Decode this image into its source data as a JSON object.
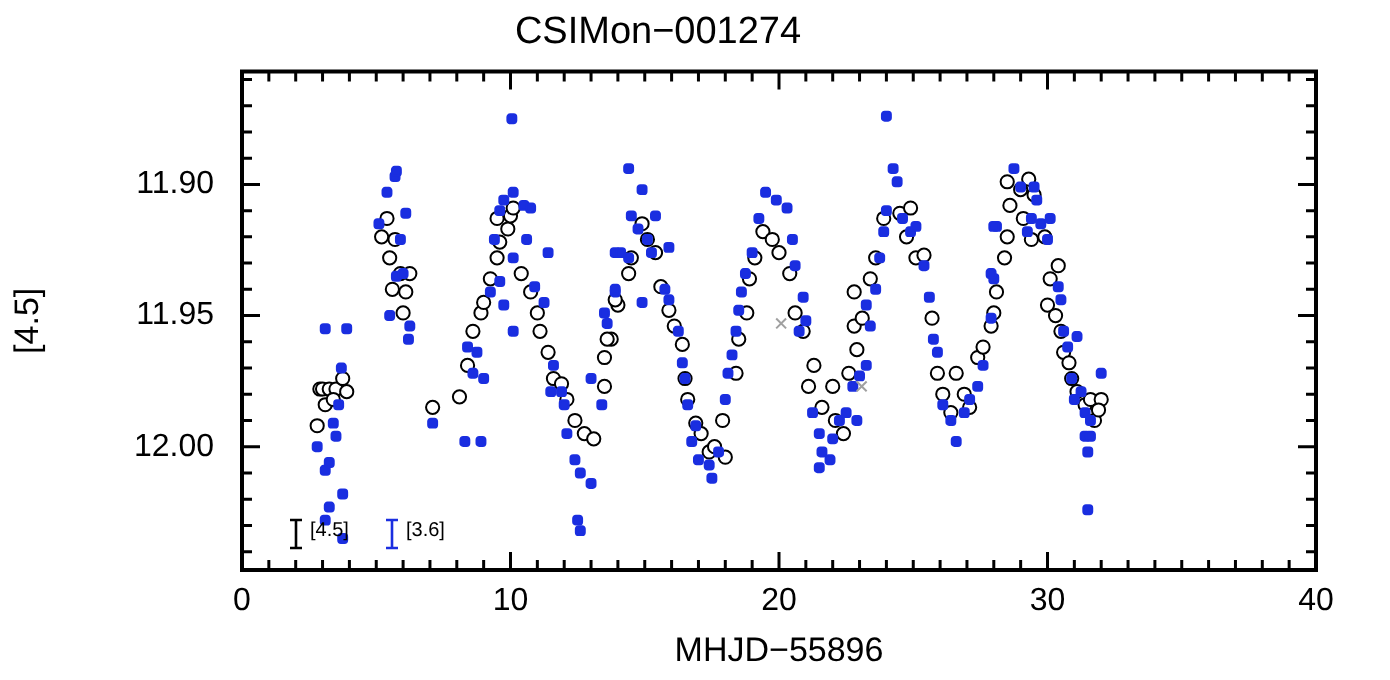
{
  "chart_data": {
    "type": "scatter",
    "title": "CSIMon−001274",
    "xlabel": "MHJD−55896",
    "ylabel": "[4.5]",
    "xlim": [
      0,
      40
    ],
    "ylim": [
      12.047,
      11.857
    ],
    "xticks": [
      0,
      {
        "value": 1,
        "label": null
      },
      {
        "value": 2,
        "label": null
      },
      {
        "value": 3,
        "label": null
      },
      {
        "value": 4,
        "label": null
      },
      {
        "value": 5,
        "label": null
      },
      {
        "value": 6,
        "label": null
      },
      {
        "value": 7,
        "label": null
      },
      {
        "value": 8,
        "label": null
      },
      {
        "value": 9,
        "label": null
      },
      10,
      {
        "value": 11,
        "label": null
      },
      {
        "value": 12,
        "label": null
      },
      {
        "value": 13,
        "label": null
      },
      {
        "value": 14,
        "label": null
      },
      {
        "value": 15,
        "label": null
      },
      {
        "value": 16,
        "label": null
      },
      {
        "value": 17,
        "label": null
      },
      {
        "value": 18,
        "label": null
      },
      {
        "value": 19,
        "label": null
      },
      20,
      {
        "value": 21,
        "label": null
      },
      {
        "value": 22,
        "label": null
      },
      {
        "value": 23,
        "label": null
      },
      {
        "value": 24,
        "label": null
      },
      {
        "value": 25,
        "label": null
      },
      {
        "value": 26,
        "label": null
      },
      {
        "value": 27,
        "label": null
      },
      {
        "value": 28,
        "label": null
      },
      {
        "value": 29,
        "label": null
      },
      30,
      {
        "value": 31,
        "label": null
      },
      {
        "value": 32,
        "label": null
      },
      {
        "value": 33,
        "label": null
      },
      {
        "value": 34,
        "label": null
      },
      {
        "value": 35,
        "label": null
      },
      {
        "value": 36,
        "label": null
      },
      {
        "value": 37,
        "label": null
      },
      {
        "value": 38,
        "label": null
      },
      {
        "value": 39,
        "label": null
      },
      40
    ],
    "yticks": [
      {
        "value": 11.86,
        "label": null
      },
      {
        "value": 11.87,
        "label": null
      },
      {
        "value": 11.88,
        "label": null
      },
      {
        "value": 11.89,
        "label": null
      },
      {
        "value": 11.9,
        "label": "11.90"
      },
      {
        "value": 11.91,
        "label": null
      },
      {
        "value": 11.92,
        "label": null
      },
      {
        "value": 11.93,
        "label": null
      },
      {
        "value": 11.94,
        "label": null
      },
      {
        "value": 11.95,
        "label": "11.95"
      },
      {
        "value": 11.96,
        "label": null
      },
      {
        "value": 11.97,
        "label": null
      },
      {
        "value": 11.98,
        "label": null
      },
      {
        "value": 11.99,
        "label": null
      },
      {
        "value": 12.0,
        "label": "12.00"
      },
      {
        "value": 12.01,
        "label": null
      },
      {
        "value": 12.02,
        "label": null
      },
      {
        "value": 12.03,
        "label": null
      },
      {
        "value": 12.04,
        "label": null
      }
    ],
    "legend": "bottom left",
    "series": [
      {
        "name": "[4.5]",
        "color": "#000000",
        "marker": "circle",
        "x": [
          2.9,
          3.0,
          3.25,
          3.5,
          3.75,
          3.9,
          3.1,
          3.4,
          2.8,
          5.4,
          5.2,
          5.7,
          5.5,
          5.9,
          6.25,
          5.6,
          6.1,
          6.0,
          7.1,
          8.1,
          8.4,
          8.6,
          8.9,
          9.0,
          9.25,
          9.5,
          9.6,
          9.9,
          9.5,
          10.0,
          10.1,
          10.4,
          10.75,
          11.0,
          11.1,
          11.4,
          11.6,
          11.9,
          12.1,
          12.4,
          12.75,
          13.1,
          13.5,
          13.75,
          14.0,
          13.9,
          14.5,
          14.9,
          15.1,
          15.4,
          14.4,
          13.6,
          13.5,
          15.6,
          15.9,
          16.1,
          16.4,
          16.5,
          16.6,
          16.9,
          17.1,
          17.4,
          17.6,
          18.0,
          17.9,
          18.4,
          18.5,
          18.8,
          18.9,
          19.1,
          19.4,
          19.75,
          20.0,
          20.4,
          20.6,
          20.9,
          21.3,
          21.1,
          21.6,
          22.0,
          22.1,
          22.4,
          22.6,
          22.9,
          22.8,
          23.1,
          22.8,
          23.4,
          23.6,
          23.9,
          24.5,
          24.9,
          24.75,
          25.1,
          25.4,
          25.7,
          25.9,
          26.1,
          26.4,
          26.6,
          26.9,
          27.1,
          27.4,
          27.6,
          27.9,
          28.0,
          28.1,
          28.4,
          28.5,
          28.6,
          28.5,
          29.0,
          29.3,
          29.5,
          29.4,
          29.1,
          29.9,
          30.4,
          30.1,
          30.0,
          30.3,
          30.5,
          30.6,
          30.8,
          30.9,
          31.1,
          31.4,
          31.6,
          32.0,
          31.75,
          31.9
        ],
        "values": [
          11.978,
          11.978,
          11.978,
          11.978,
          11.974,
          11.979,
          11.984,
          11.982,
          11.992,
          11.913,
          11.92,
          11.921,
          11.928,
          11.934,
          11.934,
          11.94,
          11.941,
          11.949,
          11.985,
          11.981,
          11.969,
          11.956,
          11.949,
          11.945,
          11.936,
          11.928,
          11.922,
          11.917,
          11.913,
          11.912,
          11.909,
          11.934,
          11.941,
          11.949,
          11.956,
          11.964,
          11.974,
          11.976,
          11.982,
          11.99,
          11.995,
          11.997,
          11.966,
          11.959,
          11.946,
          11.944,
          11.928,
          11.915,
          11.921,
          11.926,
          11.934,
          11.959,
          11.977,
          11.939,
          11.948,
          11.954,
          11.961,
          11.974,
          11.982,
          11.991,
          11.995,
          12.002,
          12.0,
          12.004,
          11.99,
          11.972,
          11.959,
          11.949,
          11.936,
          11.928,
          11.918,
          11.921,
          11.926,
          11.934,
          11.949,
          11.956,
          11.969,
          11.977,
          11.985,
          11.977,
          11.99,
          11.995,
          11.972,
          11.963,
          11.954,
          11.951,
          11.941,
          11.936,
          11.928,
          11.913,
          11.911,
          11.909,
          11.92,
          11.928,
          11.927,
          11.951,
          11.972,
          11.98,
          11.987,
          11.972,
          11.98,
          11.985,
          11.966,
          11.962,
          11.954,
          11.949,
          11.941,
          11.928,
          11.92,
          11.908,
          11.899,
          11.902,
          11.898,
          11.904,
          11.921,
          11.913,
          11.92,
          11.931,
          11.936,
          11.946,
          11.95,
          11.956,
          11.964,
          11.968,
          11.974,
          11.979,
          11.984,
          11.982,
          11.982,
          11.99,
          11.986
        ]
      },
      {
        "name": "[3.6]",
        "color": "#1a2ee0",
        "marker": "square",
        "x": [
          2.8,
          3.1,
          3.25,
          3.5,
          3.4,
          3.6,
          3.1,
          3.9,
          3.7,
          3.75,
          3.25,
          3.1,
          3.75,
          5.4,
          5.7,
          5.75,
          5.1,
          6.1,
          5.9,
          5.75,
          6.0,
          5.5,
          6.25,
          6.2,
          7.1,
          8.3,
          8.9,
          8.4,
          8.75,
          8.6,
          9.0,
          9.25,
          9.4,
          9.6,
          9.75,
          10.1,
          10.5,
          10.75,
          10.1,
          9.6,
          9.75,
          10.1,
          10.05,
          10.6,
          11.4,
          10.9,
          11.25,
          11.6,
          11.5,
          11.9,
          12.0,
          12.1,
          12.4,
          12.6,
          13.0,
          12.5,
          12.6,
          13.0,
          13.6,
          13.9,
          13.9,
          14.4,
          14.9,
          14.5,
          15.4,
          14.75,
          15.1,
          14.1,
          14.4,
          15.25,
          15.9,
          13.9,
          13.5,
          13.4,
          14.9,
          15.75,
          15.9,
          16.25,
          16.4,
          16.5,
          16.6,
          16.9,
          16.75,
          17.0,
          17.4,
          17.5,
          17.75,
          18.0,
          18.1,
          18.25,
          18.4,
          18.5,
          18.6,
          18.75,
          19.0,
          19.25,
          19.5,
          19.9,
          20.3,
          20.5,
          20.6,
          20.9,
          21.0,
          20.75,
          24.0,
          21.25,
          21.5,
          21.6,
          21.9,
          22.0,
          22.25,
          22.5,
          22.75,
          23.0,
          22.9,
          21.5,
          23.25,
          23.4,
          23.6,
          23.75,
          23.9,
          24.0,
          24.25,
          24.4,
          24.6,
          24.9,
          25.1,
          25.4,
          25.6,
          25.75,
          25.9,
          23.25,
          26.1,
          26.4,
          26.6,
          26.9,
          27.1,
          27.4,
          27.6,
          27.9,
          28.0,
          28.1,
          27.9,
          28.0,
          28.75,
          29.0,
          29.5,
          29.6,
          29.4,
          29.25,
          29.75,
          30.0,
          30.1,
          30.4,
          30.5,
          30.6,
          30.75,
          31.1,
          30.9,
          31.0,
          31.25,
          31.4,
          31.6,
          32.0,
          31.4,
          31.6,
          31.5,
          31.5
        ],
        "values": [
          12.0,
          12.009,
          12.006,
          11.996,
          11.991,
          11.984,
          11.955,
          11.955,
          11.97,
          12.018,
          12.023,
          12.028,
          12.035,
          11.903,
          11.897,
          11.895,
          11.915,
          11.911,
          11.921,
          11.935,
          11.934,
          11.95,
          11.954,
          11.959,
          11.991,
          11.998,
          11.998,
          11.962,
          11.964,
          11.972,
          11.974,
          11.941,
          11.921,
          11.91,
          11.906,
          11.903,
          11.908,
          11.909,
          11.928,
          11.937,
          11.946,
          11.956,
          11.875,
          11.921,
          11.926,
          11.939,
          11.945,
          11.969,
          11.979,
          11.979,
          11.984,
          11.995,
          12.005,
          12.01,
          12.014,
          12.028,
          12.032,
          11.974,
          11.953,
          11.941,
          11.926,
          11.894,
          11.902,
          11.912,
          11.912,
          11.917,
          11.921,
          11.926,
          11.928,
          11.926,
          11.924,
          11.94,
          11.949,
          11.984,
          11.945,
          11.94,
          11.944,
          11.956,
          11.968,
          11.974,
          11.984,
          11.992,
          11.998,
          12.005,
          12.007,
          12.012,
          12.002,
          11.982,
          11.972,
          11.965,
          11.956,
          11.948,
          11.941,
          11.934,
          11.926,
          11.913,
          11.903,
          11.906,
          11.909,
          11.921,
          11.931,
          11.943,
          11.952,
          11.956,
          11.874,
          11.987,
          11.995,
          12.002,
          12.005,
          11.997,
          11.99,
          11.987,
          11.977,
          11.973,
          11.99,
          12.008,
          11.969,
          11.954,
          11.94,
          11.928,
          11.918,
          11.91,
          11.894,
          11.899,
          11.913,
          11.918,
          11.916,
          11.931,
          11.943,
          11.959,
          11.964,
          11.946,
          11.984,
          11.99,
          11.998,
          11.987,
          11.982,
          11.977,
          11.969,
          11.951,
          11.936,
          11.916,
          11.934,
          11.916,
          11.894,
          11.901,
          11.901,
          11.906,
          11.913,
          11.918,
          11.915,
          11.921,
          11.913,
          11.939,
          11.944,
          11.956,
          11.962,
          11.958,
          11.974,
          11.982,
          11.979,
          11.987,
          11.99,
          11.972,
          11.996,
          11.996,
          12.002,
          12.024
        ]
      },
      {
        "color": "#a0a0a0",
        "marker": "cross",
        "x": [
          20.08,
          23.08
        ],
        "values": [
          11.953,
          11.977
        ]
      }
    ]
  }
}
